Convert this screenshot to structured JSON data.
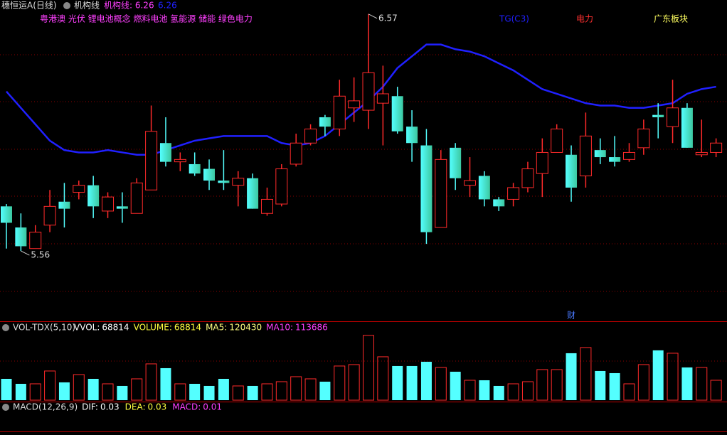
{
  "header": {
    "title": "穗恒运A(日线)",
    "indicator": "机构线",
    "indicator_value_label": "机构线: 6.26",
    "concepts": "粤港澳 光伏 锂电池概念 燃料电池 氢能源 储能 绿色电力",
    "tags": [
      {
        "text": "电力",
        "color": "#ff3030"
      },
      {
        "text": "广东板块",
        "color": "#ffff60"
      }
    ]
  },
  "chart_data": [
    {
      "type": "candlestick",
      "up_color": "#ff2a2a",
      "down_color": "#54ffff",
      "ylim": [
        5.26,
        6.63
      ],
      "event_label": "财",
      "open": [
        5.75,
        5.66,
        5.57,
        5.67,
        5.77,
        5.81,
        5.84,
        5.73,
        5.75,
        5.72,
        5.82,
        6.02,
        5.94,
        5.93,
        5.91,
        5.86,
        5.84,
        5.87,
        5.72,
        5.76,
        5.93,
        6.02,
        6.13,
        6.08,
        6.17,
        6.16,
        6.19,
        6.22,
        6.09,
        6.01,
        5.66,
        6.0,
        5.84,
        5.88,
        5.78,
        5.78,
        5.83,
        5.89,
        5.98,
        5.97,
        5.88,
        5.99,
        5.96,
        5.95,
        6.0,
        6.14,
        6.09,
        6.17,
        5.97,
        5.98
      ],
      "high": [
        5.76,
        5.72,
        5.67,
        5.82,
        5.85,
        5.86,
        5.88,
        5.81,
        5.81,
        5.87,
        6.18,
        6.13,
        5.98,
        5.98,
        5.95,
        5.99,
        5.9,
        5.89,
        5.83,
        5.93,
        6.06,
        6.1,
        6.14,
        6.29,
        6.3,
        6.57,
        6.35,
        6.26,
        6.16,
        6.08,
        5.99,
        6.02,
        5.96,
        5.9,
        5.79,
        5.85,
        5.94,
        6.04,
        6.1,
        6.01,
        6.15,
        6.04,
        6.05,
        6.02,
        6.12,
        6.19,
        6.29,
        6.19,
        6.12,
        6.04
      ],
      "low": [
        5.57,
        5.56,
        5.57,
        5.64,
        5.66,
        5.78,
        5.7,
        5.7,
        5.68,
        5.72,
        5.82,
        5.92,
        5.9,
        5.88,
        5.82,
        5.82,
        5.75,
        5.74,
        5.71,
        5.75,
        5.92,
        6.01,
        6.05,
        6.05,
        6.11,
        6.08,
        6.01,
        6.06,
        5.94,
        5.59,
        5.66,
        5.82,
        5.79,
        5.75,
        5.73,
        5.75,
        5.81,
        5.79,
        5.98,
        5.77,
        5.83,
        5.93,
        5.92,
        5.94,
        5.97,
        6.04,
        6.02,
        6.0,
        5.96,
        5.96
      ],
      "close": [
        5.68,
        5.58,
        5.64,
        5.75,
        5.74,
        5.84,
        5.75,
        5.79,
        5.74,
        5.85,
        6.07,
        5.94,
        5.95,
        5.89,
        5.86,
        5.85,
        5.87,
        5.74,
        5.78,
        5.91,
        6.02,
        6.08,
        6.09,
        6.22,
        6.2,
        6.32,
        6.23,
        6.07,
        6.02,
        5.64,
        5.95,
        5.87,
        5.86,
        5.78,
        5.75,
        5.83,
        5.91,
        5.98,
        6.08,
        5.83,
        6.05,
        5.96,
        5.94,
        5.98,
        6.08,
        6.13,
        6.17,
        6.0,
        5.98,
        6.02
      ],
      "line": {
        "name": "TG(C3)",
        "color": "#2020ff",
        "values": [
          6.24,
          6.17,
          6.1,
          6.03,
          5.99,
          5.98,
          5.98,
          5.99,
          5.98,
          5.97,
          5.97,
          5.99,
          6.01,
          6.03,
          6.04,
          6.05,
          6.05,
          6.05,
          6.05,
          6.02,
          6.01,
          6.02,
          6.05,
          6.1,
          6.15,
          6.2,
          6.26,
          6.34,
          6.39,
          6.44,
          6.44,
          6.42,
          6.41,
          6.39,
          6.36,
          6.33,
          6.29,
          6.25,
          6.23,
          6.21,
          6.19,
          6.18,
          6.18,
          6.17,
          6.17,
          6.18,
          6.19,
          6.23,
          6.25,
          6.26
        ]
      }
    },
    {
      "type": "bar",
      "title": "VOL-TDX(5,10)",
      "ylim": [
        0,
        248000
      ],
      "legend": [
        {
          "label": "VVOL:",
          "value": 68814,
          "color": "#ffffff"
        },
        {
          "label": "VOLUME:",
          "value": 68814,
          "color": "#ffff40"
        },
        {
          "label": "MA5:",
          "value": 120430,
          "color": "#ffff80"
        },
        {
          "label": "MA10:",
          "value": 113686,
          "color": "#ff40ff"
        }
      ],
      "values": [
        73700,
        56500,
        56500,
        100800,
        61500,
        88500,
        73700,
        56500,
        49200,
        73700,
        125400,
        110600,
        56500,
        56500,
        49200,
        73700,
        49200,
        49200,
        56500,
        63900,
        81100,
        73700,
        63900,
        118000,
        122900,
        223700,
        149900,
        118000,
        118000,
        132700,
        113100,
        98300,
        68800,
        68800,
        49200,
        56500,
        63900,
        105700,
        105700,
        162200,
        181900,
        100800,
        93400,
        56500,
        122900,
        172100,
        162200,
        113100,
        113100,
        68814
      ]
    }
  ],
  "macd_legend": {
    "title": "MACD(12,26,9)",
    "items": [
      {
        "label": "DIF:",
        "value": 0.03,
        "color": "#ffffff"
      },
      {
        "label": "DEA:",
        "value": 0.03,
        "color": "#ffff40"
      },
      {
        "label": "MACD:",
        "value": 0.01,
        "color": "#ff40ff"
      }
    ]
  }
}
